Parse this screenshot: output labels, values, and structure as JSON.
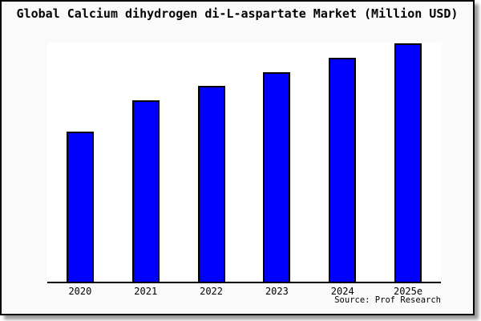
{
  "title": "Global Calcium dihydrogen di-L-aspartate Market (Million USD)",
  "source_note": "Source: Prof Research",
  "colors": {
    "bar_fill": "#0000ff",
    "bar_border": "#000000",
    "frame_border": "#000000",
    "figure_bg": "#fafafa",
    "plot_bg": "#ffffff",
    "shadow": "#999999",
    "text": "#000000"
  },
  "chart_data": {
    "type": "bar",
    "title": "Global Calcium dihydrogen di-L-aspartate Market (Million USD)",
    "categories": [
      "2020",
      "2021",
      "2022",
      "2023",
      "2024",
      "2025e"
    ],
    "values": [
      63,
      76,
      82,
      88,
      94,
      100
    ],
    "values_note": "No y-axis ticks or data labels are shown in the chart; values are relative estimates read from bar heights, normalized so the tallest bar (2025e) = 100.",
    "xlabel": "",
    "ylabel": "",
    "ylim": [
      0,
      100.3
    ],
    "grid": false,
    "legend": "none",
    "y_axis_labels": "none",
    "source_note": "Source: Prof Research"
  }
}
